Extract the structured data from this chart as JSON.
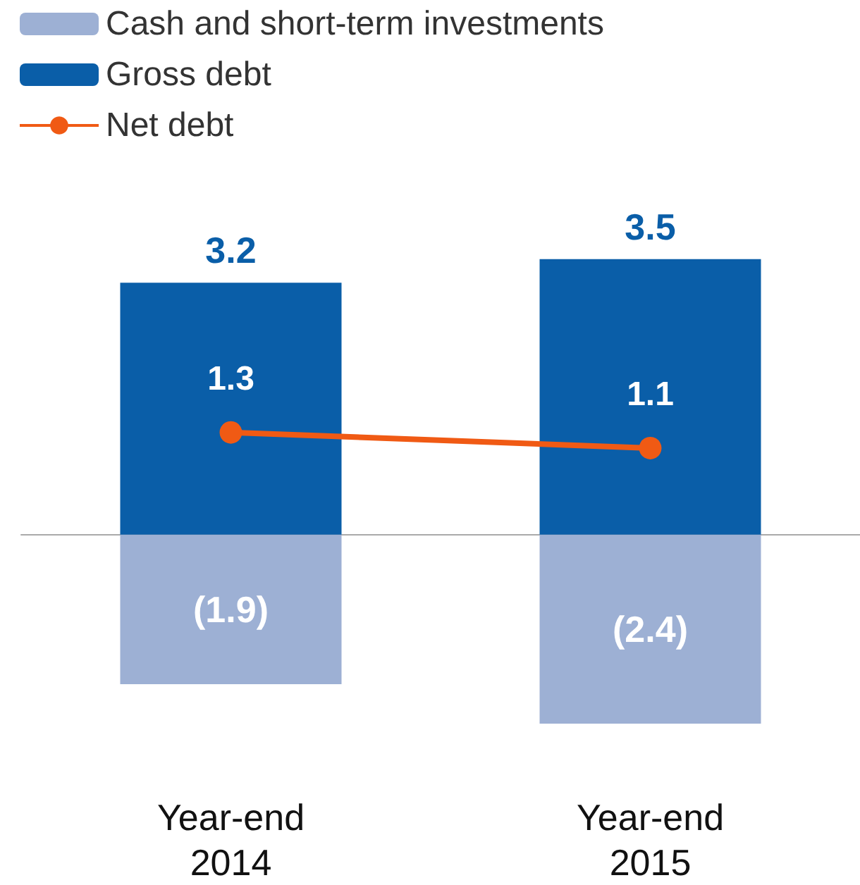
{
  "chart_data": {
    "type": "bar",
    "stacked": true,
    "categories": [
      "Year-end\n2014",
      "Year-end\n2015"
    ],
    "tick_labels": "x",
    "grid": false,
    "legend": "top left",
    "marker": "circle",
    "line_style": "solid",
    "series": [
      {
        "name": "Cash and short-term investments",
        "color": "#9db0d4",
        "values": [
          -1.9,
          -2.4
        ],
        "value_labels": [
          "(1.9)",
          "(2.4)"
        ]
      },
      {
        "name": "Gross debt",
        "color": "#0a5ea8",
        "values": [
          3.2,
          3.5
        ],
        "value_labels": [
          "3.2",
          "3.5"
        ]
      },
      {
        "type": "line",
        "name": "Net debt",
        "color": "#f05a14",
        "values": [
          1.3,
          1.1
        ],
        "value_labels": [
          "1.3",
          "1.1"
        ]
      }
    ]
  }
}
